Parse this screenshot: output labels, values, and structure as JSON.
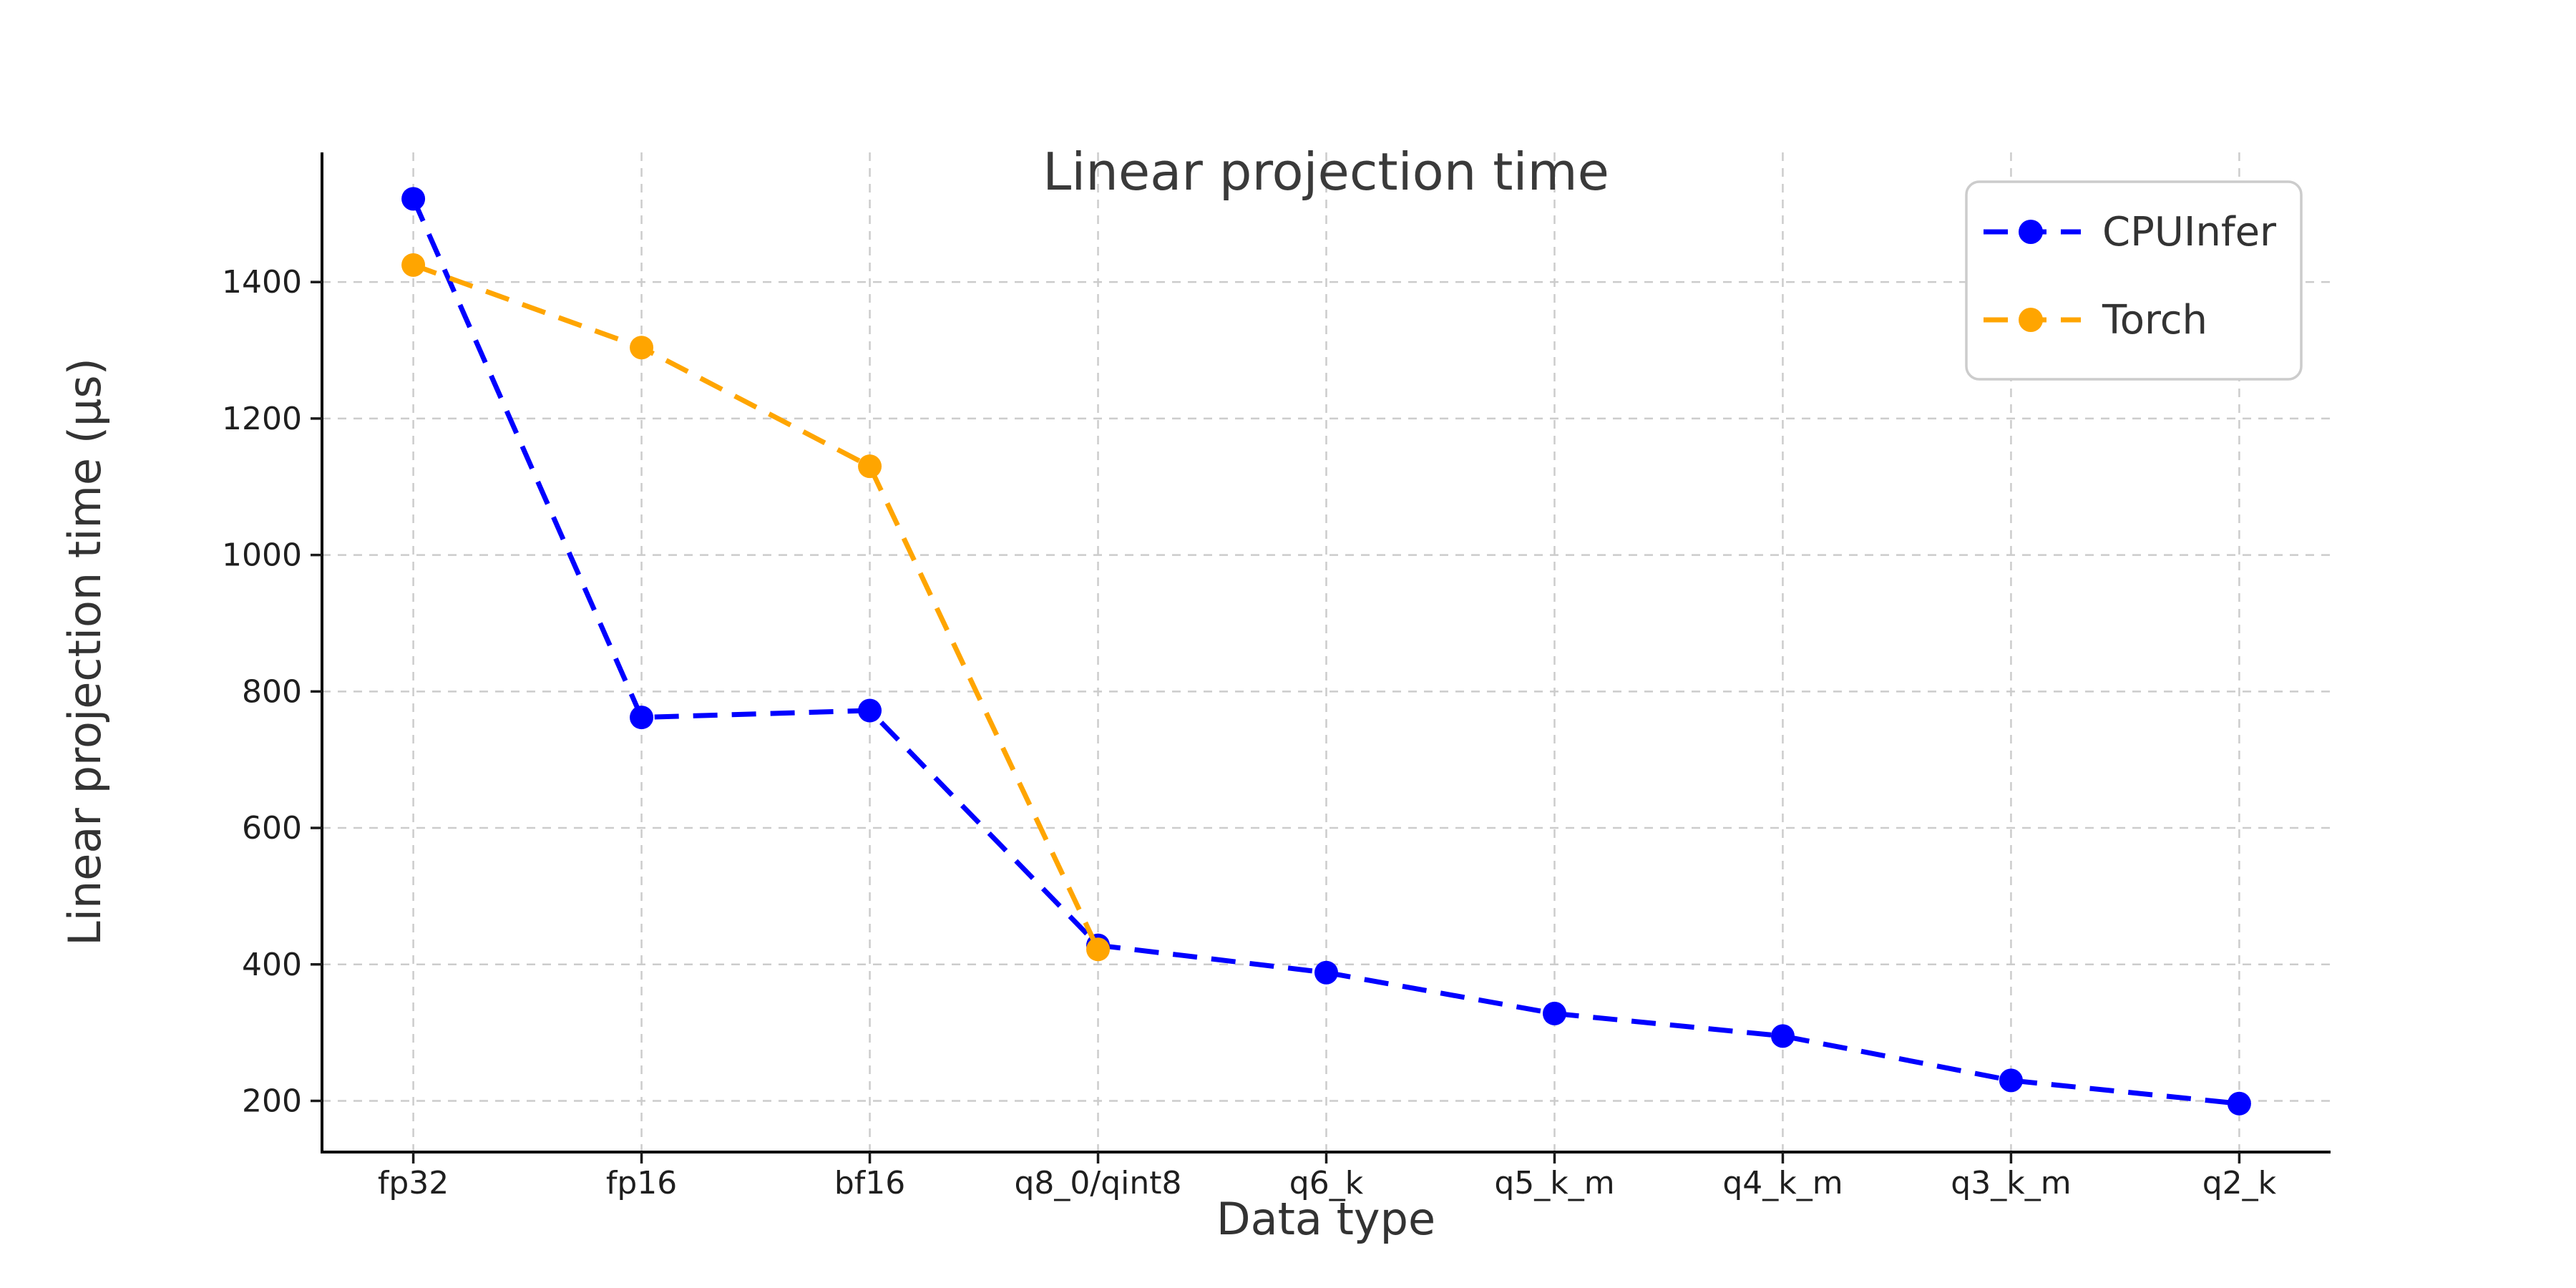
{
  "chart_data": {
    "type": "line",
    "title": "Linear projection time",
    "xlabel": "Data type",
    "ylabel": "Linear projection time (μs)",
    "categories": [
      "fp32",
      "fp16",
      "bf16",
      "q8_0/qint8",
      "q6_k",
      "q5_k_m",
      "q4_k_m",
      "q3_k_m",
      "q2_k"
    ],
    "series": [
      {
        "name": "CPUInfer",
        "color": "#0000ff",
        "values": [
          1522,
          762,
          772,
          428,
          388,
          328,
          295,
          230,
          196
        ]
      },
      {
        "name": "Torch",
        "color": "#ffa500",
        "values": [
          1425,
          1304,
          1130,
          422,
          null,
          null,
          null,
          null,
          null
        ]
      }
    ],
    "yticks": [
      200,
      400,
      600,
      800,
      1000,
      1200,
      1400
    ],
    "ylim": [
      125,
      1590
    ],
    "line_style": "dashed",
    "marker": "circle",
    "grid": true,
    "grid_color": "#cccccc",
    "legend_position": "upper right",
    "background_color": "#ffffff",
    "spine_color": "#000000",
    "text_color": "#333333",
    "tick_text_color": "#1f1f1f"
  }
}
